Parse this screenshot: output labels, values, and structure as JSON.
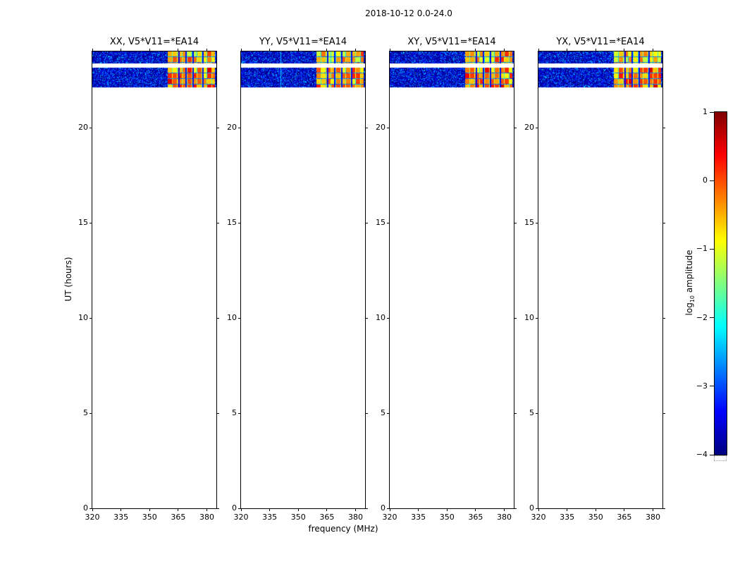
{
  "figure": {
    "title": "2018-10-12 0.0-24.0"
  },
  "chart_data": {
    "type": "heatmap",
    "title": "2018-10-12 0.0-24.0",
    "xlabel": "frequency (MHz)",
    "ylabel": "UT (hours)",
    "x_range": [
      320,
      385
    ],
    "x_ticks": [
      320,
      335,
      350,
      365,
      380
    ],
    "y_range": [
      0,
      24
    ],
    "y_ticks": [
      0,
      5,
      10,
      15,
      20
    ],
    "panels": [
      {
        "title": "XX, V5*V11=*EA14",
        "seed": 101
      },
      {
        "title": "YY, V5*V11=*EA14",
        "seed": 202
      },
      {
        "title": "XY, V5*V11=*EA14",
        "seed": 303
      },
      {
        "title": "YX, V5*V11=*EA14",
        "seed": 404
      }
    ],
    "colorbar": {
      "label": "log10 amplitude",
      "label_parts": {
        "pre": "log",
        "sub": "10",
        "post": " amplitude"
      },
      "range": [
        -4,
        1
      ],
      "ticks": [
        1,
        0,
        -1,
        -2,
        -3,
        -4
      ],
      "colormap": "jet",
      "position": "right"
    },
    "bands": [
      {
        "ut_start": 23.38,
        "ut_end": 24.0,
        "noise_log_range": [
          -4.0,
          -2.4
        ],
        "rfi": {
          "freq_start": 359.5,
          "freq_end": 384.2,
          "log_range": [
            -1.2,
            -0.1
          ]
        }
      },
      {
        "ut_start": 22.1,
        "ut_end": 23.15,
        "noise_log_range": [
          -4.0,
          -2.4
        ],
        "rfi": {
          "freq_start": 359.5,
          "freq_end": 384.2,
          "log_range": [
            -1.0,
            0.3
          ]
        }
      }
    ],
    "flagged_freqs": [
      365.0,
      368.7,
      372.4,
      377.5
    ],
    "vlines": [
      {
        "panel": 1,
        "freq": 340.5,
        "log": -2.5
      }
    ]
  }
}
